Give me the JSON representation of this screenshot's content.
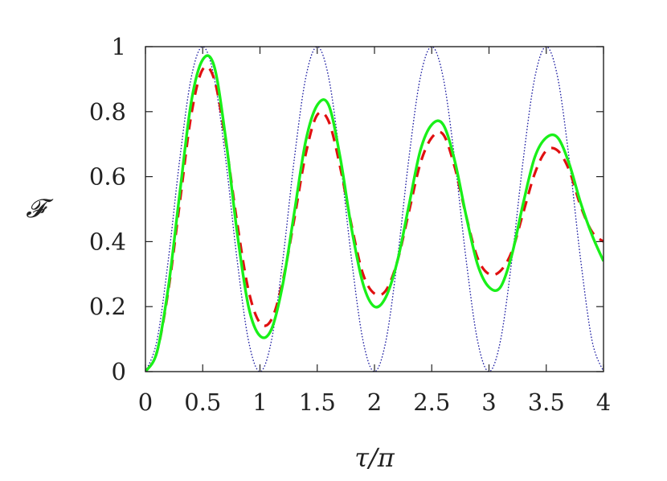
{
  "chart_data": {
    "type": "line",
    "title": "",
    "xlabel": "τ/π",
    "ylabel": "𝓕",
    "xlim": [
      0,
      4
    ],
    "ylim": [
      0,
      1
    ],
    "x_ticks": [
      "0",
      "0.5",
      "1",
      "1.5",
      "2",
      "2.5",
      "3",
      "3.5",
      "4"
    ],
    "y_ticks": [
      "0",
      "0.2",
      "0.4",
      "0.6",
      "0.8",
      "1"
    ],
    "grid": false,
    "legend": "none",
    "x": [
      0.0,
      0.1,
      0.2,
      0.3,
      0.4,
      0.5,
      0.6,
      0.7,
      0.8,
      0.9,
      1.0,
      1.1,
      1.2,
      1.3,
      1.4,
      1.5,
      1.6,
      1.7,
      1.8,
      1.9,
      2.0,
      2.1,
      2.2,
      2.3,
      2.4,
      2.5,
      2.6,
      2.7,
      2.8,
      2.9,
      3.0,
      3.1,
      3.2,
      3.3,
      3.4,
      3.5,
      3.6,
      3.7,
      3.8,
      3.9,
      4.0
    ],
    "series": [
      {
        "style": "dotted",
        "color": "#1a1aa0",
        "values": [
          0.0,
          0.095,
          0.345,
          0.655,
          0.905,
          1.0,
          0.905,
          0.655,
          0.345,
          0.095,
          0.0,
          0.095,
          0.345,
          0.655,
          0.905,
          1.0,
          0.905,
          0.655,
          0.345,
          0.095,
          0.0,
          0.095,
          0.345,
          0.655,
          0.905,
          1.0,
          0.905,
          0.655,
          0.345,
          0.095,
          0.0,
          0.095,
          0.345,
          0.655,
          0.905,
          1.0,
          0.905,
          0.655,
          0.345,
          0.095,
          0.0
        ]
      },
      {
        "style": "dashed",
        "color": "#e01010",
        "values": [
          0.0,
          0.06,
          0.25,
          0.52,
          0.79,
          0.93,
          0.9,
          0.71,
          0.46,
          0.25,
          0.15,
          0.16,
          0.28,
          0.47,
          0.67,
          0.79,
          0.77,
          0.63,
          0.45,
          0.3,
          0.24,
          0.25,
          0.34,
          0.49,
          0.64,
          0.72,
          0.73,
          0.63,
          0.48,
          0.35,
          0.3,
          0.31,
          0.37,
          0.49,
          0.61,
          0.68,
          0.68,
          0.62,
          0.51,
          0.43,
          0.4
        ]
      },
      {
        "style": "solid",
        "color": "#19f019",
        "values": [
          0.0,
          0.06,
          0.26,
          0.55,
          0.83,
          0.96,
          0.94,
          0.72,
          0.43,
          0.2,
          0.11,
          0.13,
          0.27,
          0.49,
          0.71,
          0.82,
          0.82,
          0.66,
          0.44,
          0.27,
          0.2,
          0.23,
          0.34,
          0.51,
          0.68,
          0.76,
          0.76,
          0.65,
          0.48,
          0.33,
          0.26,
          0.26,
          0.36,
          0.52,
          0.66,
          0.72,
          0.72,
          0.64,
          0.52,
          0.42,
          0.34
        ]
      }
    ]
  }
}
